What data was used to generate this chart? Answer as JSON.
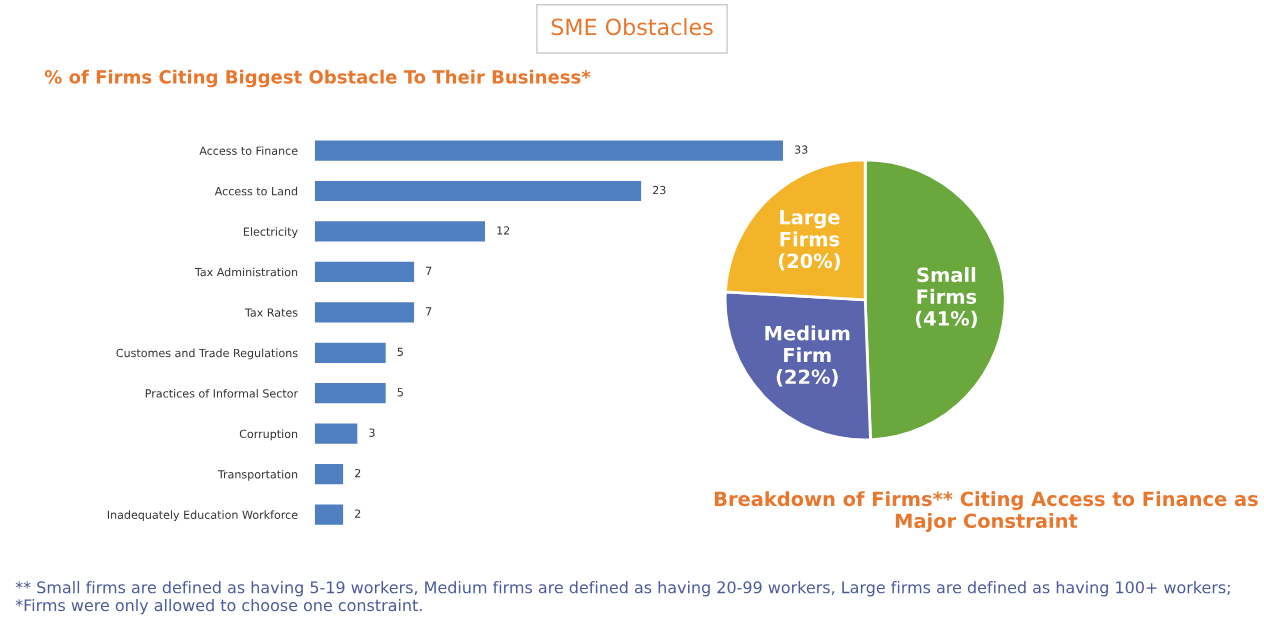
{
  "chart_data": [
    {
      "type": "bar",
      "orientation": "horizontal",
      "title": "% of Firms Citing Biggest Obstacle To Their Business*",
      "categories": [
        "Access to Finance",
        "Access to Land",
        "Electricity",
        "Tax Administration",
        "Tax Rates",
        "Customes and Trade Regulations",
        "Practices of Informal Sector",
        "Corruption",
        "Transportation",
        "Inadequately Education Workforce"
      ],
      "values": [
        33,
        23,
        12,
        7,
        7,
        5,
        5,
        3,
        2,
        2
      ],
      "color": "#4f7fc0",
      "data_labels": true,
      "grid": false,
      "legend": false,
      "annotations": [
        "SME Obstacles",
        "** Small firms are defined as having 5-19 workers, Medium firms are defined as having 20-99 workers, Large firms are defined as having 100+ workers; *Firms were only allowed to choose one constraint."
      ]
    },
    {
      "type": "pie",
      "title": "Breakdown of Firms** Citing Access to Finance as Major Constraint",
      "categories": [
        "Small\nFirms",
        "Medium\nFirm",
        "Large\nFirms"
      ],
      "values": [
        41,
        22,
        20
      ],
      "value_labels": [
        "(41%)",
        "(22%)",
        "(20%)"
      ],
      "colors": [
        "#6aa73c",
        "#5a65ad",
        "#f4b42a"
      ],
      "legend": false
    }
  ]
}
